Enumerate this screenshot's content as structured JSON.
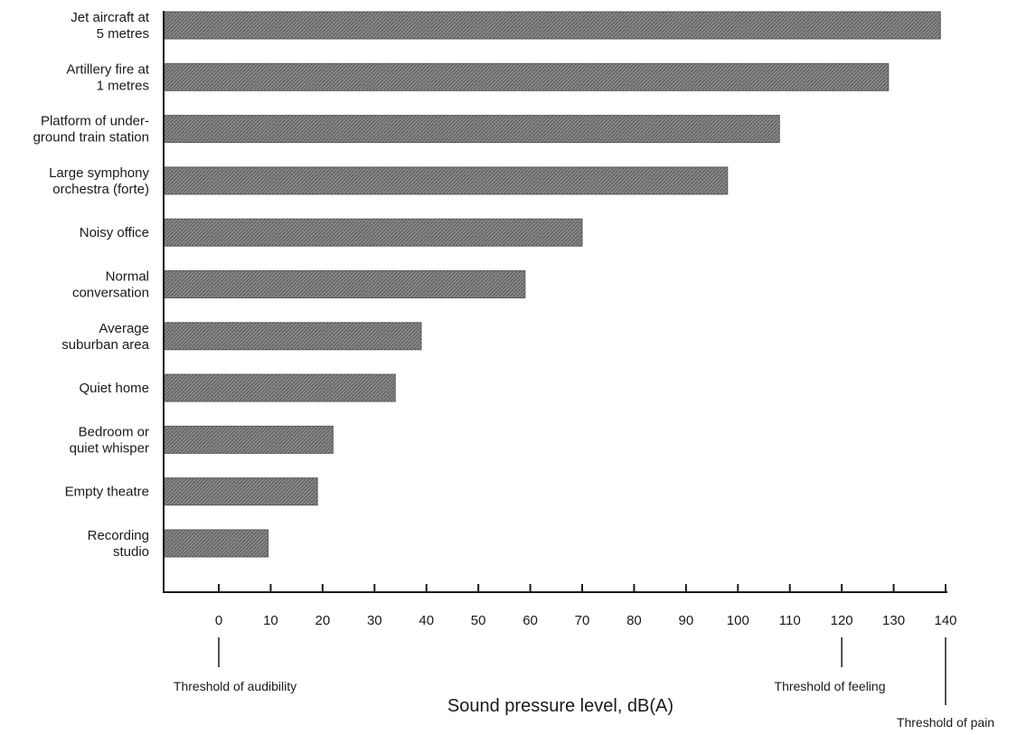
{
  "chart_data": {
    "type": "bar",
    "orientation": "horizontal",
    "categories": [
      [
        "Jet aircraft at",
        "5 metres"
      ],
      [
        "Artillery fire at",
        "1 metres"
      ],
      [
        "Platform of under-",
        "ground train station"
      ],
      [
        "Large symphony",
        "orchestra (forte)"
      ],
      [
        "Noisy office"
      ],
      [
        "Normal",
        "conversation"
      ],
      [
        "Average",
        "suburban area"
      ],
      [
        "Quiet home"
      ],
      [
        "Bedroom or",
        "quiet whisper"
      ],
      [
        "Empty theatre"
      ],
      [
        "Recording",
        "studio"
      ]
    ],
    "values": [
      139,
      129,
      108,
      98,
      70,
      59,
      39,
      34,
      22,
      19,
      9.5
    ],
    "xlabel": "Sound pressure level, dB(A)",
    "ylabel": "",
    "xlim": [
      -10,
      140
    ],
    "xticks": [
      0,
      10,
      20,
      30,
      40,
      50,
      60,
      70,
      80,
      90,
      100,
      110,
      120,
      130,
      140
    ],
    "thresholds": [
      {
        "value": 0,
        "label": "Threshold of audibility"
      },
      {
        "value": 120,
        "label": "Threshold of feeling"
      },
      {
        "value": 140,
        "label": "Threshold of pain"
      }
    ],
    "bar_color": "#7a7a7a",
    "grid": false
  }
}
